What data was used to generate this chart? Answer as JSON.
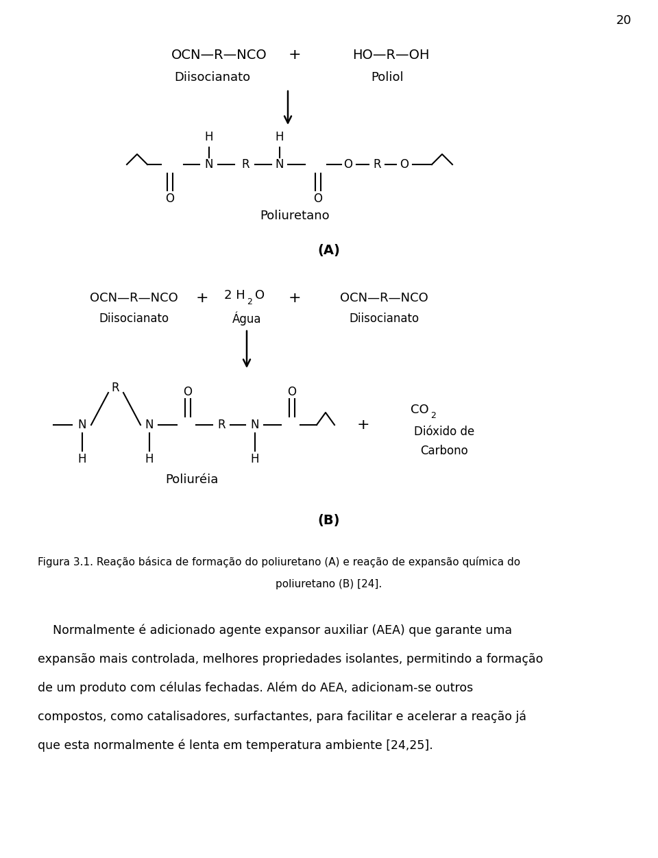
{
  "page_number": "20",
  "background_color": "#ffffff",
  "text_color": "#000000",
  "figsize": [
    9.6,
    12.52
  ],
  "dpi": 100,
  "section_A_label": "(A)",
  "section_B_label": "(B)",
  "rxnA_left": "OCN—R—NCO",
  "rxnA_plus": "+",
  "rxnA_right": "HO—R—OH",
  "rxnA_label_left": "Diisocianato",
  "rxnA_label_right": "Poliol",
  "rxnA_product": "Poliuretano",
  "rxnB_left": "OCN—R—NCO",
  "rxnB_plus1": "+",
  "rxnB_mid_pre": "2 H",
  "rxnB_mid_sub": "2",
  "rxnB_mid_post": "O",
  "rxnB_plus2": "+",
  "rxnB_right": "OCN—R—NCO",
  "rxnB_label_left": "Diisocianato",
  "rxnB_label_mid": "Água",
  "rxnB_label_right": "Diisocianato",
  "rxnB_product": "Poliuréia",
  "rxnB_plus_co2": "+",
  "rxnB_co2_pre": "CO",
  "rxnB_co2_sub": "2",
  "rxnB_co2_sub1": "Dióxido de",
  "rxnB_co2_sub2": "Carbono",
  "fig_cap1": "Figura 3.1. Reação básica de formação do poliuretano (A) e reação de expansão química do",
  "fig_cap2": "poliuretano (B) [24].",
  "body1": "    Normalmente é adicionado agente expansor auxiliar (AEA) que garante uma",
  "body2": "expansão mais controlada, melhores propriedades isolantes, permitindo a formação",
  "body3": "de um produto com células fechadas. Além do AEA, adicionam-se outros",
  "body4": "compostos, como catalisadores, surfactantes, para facilitar e acelerar a reação já",
  "body5": "que esta normalmente é lenta em temperatura ambiente [24,25]."
}
